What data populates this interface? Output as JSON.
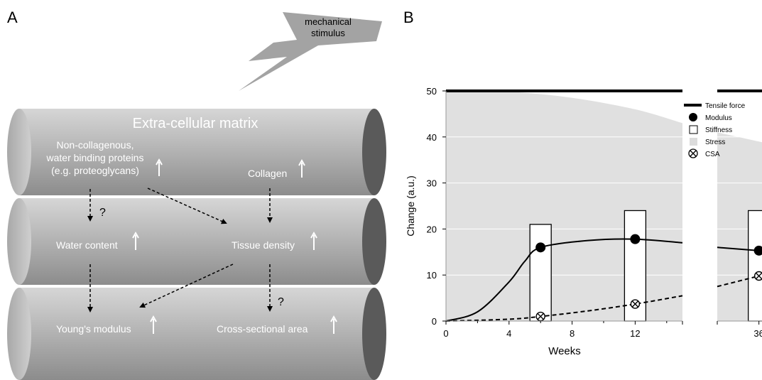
{
  "panel_a": {
    "label": "A",
    "stimulus_label": [
      "mechanical",
      "stimulus"
    ],
    "title": "Extra-cellular matrix",
    "items": {
      "noncollagenous": [
        "Non-collagenous,",
        "water binding proteins",
        "(e.g. proteoglycans)"
      ],
      "collagen": "Collagen",
      "water_content": "Water content",
      "tissue_density": "Tissue density",
      "youngs_modulus": "Young's modulus",
      "cross_sectional_area": "Cross-sectional area"
    },
    "question_marks": [
      "?",
      "?"
    ]
  },
  "panel_b": {
    "label": "B",
    "legend": [
      "Tensile force",
      "Modulus",
      "Stiffness",
      "Stress",
      "CSA"
    ]
  },
  "chart_data": {
    "type": "line",
    "xlabel": "Weeks",
    "ylabel": "Change (a.u.)",
    "x_ticks": [
      "0",
      "4",
      "8",
      "12",
      "36"
    ],
    "y_ticks": [
      "0",
      "10",
      "20",
      "30",
      "40",
      "50"
    ],
    "ylim": [
      0,
      50
    ],
    "axis_break": "between 15 and 32 weeks",
    "series": [
      {
        "name": "Tensile force",
        "style": "thick-line",
        "points": [
          [
            0,
            50
          ],
          [
            15,
            50
          ],
          [
            32,
            50
          ],
          [
            38,
            50
          ]
        ]
      },
      {
        "name": "Stress",
        "style": "gray-area",
        "points": [
          [
            0,
            50
          ],
          [
            4,
            49.8
          ],
          [
            8,
            48.5
          ],
          [
            12,
            46
          ],
          [
            15,
            43
          ],
          [
            32,
            41
          ],
          [
            38,
            38
          ]
        ]
      },
      {
        "name": "Modulus",
        "style": "solid-line",
        "points": [
          [
            0,
            0
          ],
          [
            2,
            2
          ],
          [
            4,
            8.5
          ],
          [
            5,
            13
          ],
          [
            6,
            16
          ],
          [
            9,
            17.5
          ],
          [
            12,
            17.8
          ],
          [
            15,
            17
          ],
          [
            32,
            16
          ],
          [
            36,
            15.3
          ],
          [
            38,
            15
          ]
        ],
        "markers": [
          [
            6,
            16
          ],
          [
            12,
            17.8
          ],
          [
            36,
            15.3
          ]
        ]
      },
      {
        "name": "Stiffness",
        "style": "bars",
        "bars": [
          [
            6,
            21
          ],
          [
            12,
            24
          ],
          [
            36,
            24
          ]
        ]
      },
      {
        "name": "CSA",
        "style": "dashed-line",
        "points": [
          [
            0,
            0
          ],
          [
            4,
            0.4
          ],
          [
            6,
            1
          ],
          [
            9,
            2.2
          ],
          [
            12,
            3.7
          ],
          [
            15,
            5.5
          ],
          [
            32,
            7.5
          ],
          [
            36,
            9.8
          ],
          [
            38,
            11
          ]
        ],
        "markers": [
          [
            6,
            1
          ],
          [
            12,
            3.7
          ],
          [
            36,
            9.8
          ]
        ]
      }
    ]
  },
  "colors": {
    "stress_fill": "#e0e0e0",
    "line": "#000000",
    "tube_text": "#ffffff"
  }
}
